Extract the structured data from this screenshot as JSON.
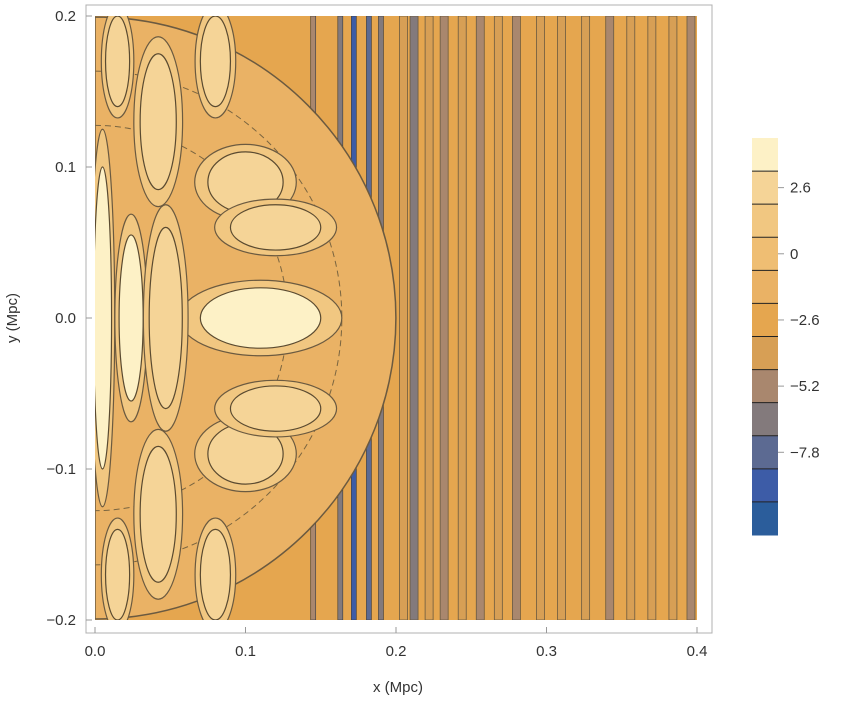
{
  "chart_data": {
    "type": "heatmap",
    "subtype": "contour",
    "title": "",
    "xlabel": "x (Mpc)",
    "ylabel": "y (Mpc)",
    "xlim": [
      0.0,
      0.4
    ],
    "ylim": [
      -0.2,
      0.2
    ],
    "x_ticks": [
      0.0,
      0.1,
      0.2,
      0.3,
      0.4
    ],
    "x_tick_labels": [
      "0.0",
      "0.1",
      "0.2",
      "0.3",
      "0.4"
    ],
    "y_ticks": [
      -0.2,
      -0.1,
      0.0,
      0.1,
      0.2
    ],
    "y_tick_labels": [
      "−0.2",
      "−0.1",
      "0.0",
      "0.1",
      "0.2"
    ],
    "colorbar": {
      "position": "right",
      "tick_values": [
        2.6,
        0,
        -2.6,
        -5.2,
        -7.8
      ],
      "tick_labels": [
        "2.6",
        "0",
        "−2.6",
        "−5.2",
        "−7.8"
      ],
      "levels": [
        3.9,
        2.6,
        1.3,
        0,
        -1.3,
        -2.6,
        -3.9,
        -5.2,
        -6.5,
        -7.8,
        -9.1,
        -10.4
      ],
      "band_colors": [
        "#fdf1c6",
        "#f5d497",
        "#f1c781",
        "#efbe73",
        "#eab265",
        "#e5a64f",
        "#d79f55",
        "#a9876e",
        "#837a7c",
        "#5c6a92",
        "#3d5ca7",
        "#2b5d9b"
      ]
    },
    "field": {
      "description_levels": "contour levels of the colorbar",
      "right_region_stripes": [
        {
          "x": 0.205,
          "level": -4.5
        },
        {
          "x": 0.212,
          "level": -6.0
        },
        {
          "x": 0.222,
          "level": -4.0
        },
        {
          "x": 0.232,
          "level": -5.5
        },
        {
          "x": 0.244,
          "level": -4.2
        },
        {
          "x": 0.256,
          "level": -5.0
        },
        {
          "x": 0.268,
          "level": -4.2
        },
        {
          "x": 0.28,
          "level": -4.8
        },
        {
          "x": 0.296,
          "level": -4.5
        },
        {
          "x": 0.31,
          "level": -4.5
        },
        {
          "x": 0.326,
          "level": -4.3
        },
        {
          "x": 0.342,
          "level": -4.6
        },
        {
          "x": 0.356,
          "level": -4.3
        },
        {
          "x": 0.37,
          "level": -4.5
        },
        {
          "x": 0.384,
          "level": -4.4
        },
        {
          "x": 0.396,
          "level": -4.6
        }
      ],
      "inner_region_dark_stripes": [
        {
          "x": 0.163,
          "level": -7.0
        },
        {
          "x": 0.172,
          "level": -8.5
        },
        {
          "x": 0.182,
          "level": -7.8
        },
        {
          "x": 0.19,
          "level": -6.5
        },
        {
          "x": 0.145,
          "level": -5.5
        }
      ],
      "bright_blobs": [
        {
          "cx": 0.11,
          "cy": 0.0,
          "rx": 0.04,
          "ry": 0.02,
          "level": 3.9
        },
        {
          "cx": 0.005,
          "cy": 0.0,
          "rx": 0.006,
          "ry": 0.1,
          "level": 3.9
        },
        {
          "cx": 0.024,
          "cy": 0.0,
          "rx": 0.008,
          "ry": 0.055,
          "level": 3.9
        },
        {
          "cx": 0.047,
          "cy": 0.0,
          "rx": 0.011,
          "ry": 0.06,
          "level": 2.6
        },
        {
          "cx": 0.042,
          "cy": 0.13,
          "rx": 0.012,
          "ry": 0.045,
          "level": 2.6
        },
        {
          "cx": 0.042,
          "cy": -0.13,
          "rx": 0.012,
          "ry": 0.045,
          "level": 2.6
        },
        {
          "cx": 0.1,
          "cy": 0.09,
          "rx": 0.025,
          "ry": 0.02,
          "level": 2.6
        },
        {
          "cx": 0.1,
          "cy": -0.09,
          "rx": 0.025,
          "ry": 0.02,
          "level": 2.6
        },
        {
          "cx": 0.12,
          "cy": 0.06,
          "rx": 0.03,
          "ry": 0.015,
          "level": 2.6
        },
        {
          "cx": 0.12,
          "cy": -0.06,
          "rx": 0.03,
          "ry": 0.015,
          "level": 2.6
        },
        {
          "cx": 0.015,
          "cy": 0.17,
          "rx": 0.008,
          "ry": 0.03,
          "level": 2.6
        },
        {
          "cx": 0.015,
          "cy": -0.17,
          "rx": 0.008,
          "ry": 0.03,
          "level": 2.6
        },
        {
          "cx": 0.08,
          "cy": 0.17,
          "rx": 0.01,
          "ry": 0.03,
          "level": 2.6
        },
        {
          "cx": 0.08,
          "cy": -0.17,
          "rx": 0.01,
          "ry": 0.03,
          "level": 2.6
        }
      ]
    }
  }
}
